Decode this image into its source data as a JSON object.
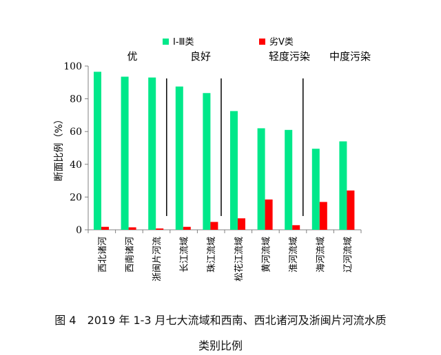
{
  "chart_data": {
    "type": "bar",
    "ylabel": "断面比例（%）",
    "ylim": [
      0,
      100
    ],
    "yticks": [
      0,
      20,
      40,
      60,
      80,
      100
    ],
    "categories": [
      "西北诸河",
      "西南诸河",
      "浙闽片河流",
      "长江流域",
      "珠江流域",
      "松花江流域",
      "黄河流域",
      "淮河流域",
      "海河流域",
      "辽河流域"
    ],
    "series": [
      {
        "name": "Ⅰ-Ⅲ类",
        "color": "#00e88a",
        "values": [
          96.5,
          93.5,
          93.0,
          87.5,
          83.5,
          72.5,
          62.0,
          61.0,
          49.5,
          54.0
        ]
      },
      {
        "name": "劣Ⅴ类",
        "color": "#ff0000",
        "values": [
          1.8,
          1.5,
          0.8,
          1.8,
          4.8,
          7.0,
          18.5,
          2.8,
          17.0,
          24.0
        ]
      }
    ],
    "groups": [
      {
        "label": "优",
        "divider_after": 3
      },
      {
        "label": "良好",
        "divider_after": 5
      },
      {
        "label": "轻度污染",
        "divider_after": 8
      },
      {
        "label": "中度污染"
      }
    ],
    "legend_position": "top"
  },
  "caption": {
    "line1": "图 4　2019 年 1-3 月七大流域和西南、西北诸河及浙闽片河流水质",
    "line2": "类别比例"
  }
}
